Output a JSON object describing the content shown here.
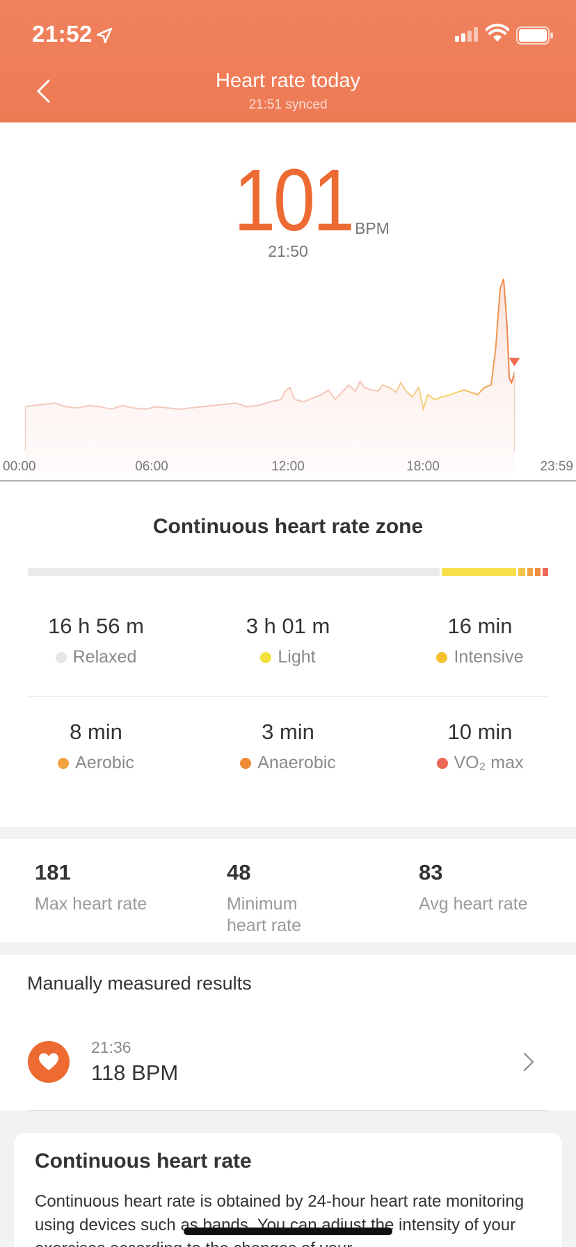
{
  "status_bar": {
    "time": "21:52",
    "icons": [
      "location-arrow-icon",
      "cellular-signal-icon",
      "wifi-icon",
      "battery-icon"
    ]
  },
  "nav": {
    "title": "Heart rate today",
    "subtitle": "21:51 synced",
    "back_icon": "chevron-left-icon"
  },
  "current": {
    "value": "101",
    "unit": "BPM",
    "time": "21:50"
  },
  "chart_data": {
    "type": "area",
    "title": "",
    "xlabel": "",
    "ylabel": "",
    "x_ticks": [
      "00:00",
      "06:00",
      "12:00",
      "18:00",
      "23:59"
    ],
    "x_range_hours": [
      0,
      24
    ],
    "y_range": [
      40,
      190
    ],
    "grid": false,
    "series": [
      {
        "x": [
          0.2,
          0.5,
          1,
          1.5,
          2,
          2.5,
          3,
          3.5,
          4,
          4.5,
          5,
          5.5,
          6,
          6.5,
          7,
          7.5,
          8,
          8.5,
          9,
          9.5,
          10,
          10.5,
          11,
          11.5,
          11.7,
          11.9,
          12.1,
          12.5,
          13,
          13.3,
          13.6,
          13.9,
          14.2,
          14.5,
          14.8,
          15,
          15.2,
          15.5,
          15.8,
          16,
          16.3,
          16.6,
          16.8,
          17,
          17.3,
          17.6,
          17.8,
          18,
          18.3,
          18.6,
          19,
          19.3,
          19.6,
          19.9,
          20.2,
          20.5,
          20.8,
          21,
          21.2,
          21.35,
          21.5,
          21.6,
          21.7,
          21.8,
          21.83
        ],
        "y": [
          72,
          73,
          74,
          75,
          72,
          71,
          73,
          72,
          70,
          73,
          71,
          70,
          72,
          71,
          70,
          71,
          72,
          73,
          74,
          75,
          72,
          73,
          76,
          78,
          85,
          88,
          78,
          76,
          80,
          82,
          86,
          78,
          84,
          90,
          85,
          93,
          88,
          86,
          85,
          90,
          88,
          84,
          92,
          86,
          80,
          88,
          70,
          82,
          78,
          80,
          82,
          84,
          86,
          84,
          82,
          88,
          90,
          120,
          170,
          178,
          140,
          96,
          92,
          98,
          101
        ]
      }
    ]
  },
  "zones": {
    "title": "Continuous heart rate zone",
    "bar_colors": {
      "Relaxed": "#ebebeb",
      "Light": "#f5e04c",
      "Intensive": "#f5c448",
      "Aerobic": "#f1a447",
      "Anaerobic": "#ef8e42",
      "VO2max": "#ec6b57"
    },
    "items": [
      {
        "duration": "16 h 56 m",
        "label": "Relaxed",
        "color": "#e6e6e6",
        "minutes": 1016
      },
      {
        "duration": "3 h 01 m",
        "label": "Light",
        "color": "#f5df3c",
        "minutes": 181
      },
      {
        "duration": "16  min",
        "label": "Intensive",
        "color": "#f5c232",
        "minutes": 16
      },
      {
        "duration": "8  min",
        "label": "Aerobic",
        "color": "#f1a340",
        "minutes": 8
      },
      {
        "duration": "3  min",
        "label": "Anaerobic",
        "color": "#ee8c37",
        "minutes": 3
      },
      {
        "duration": "10  min",
        "label": "VO₂ max",
        "color": "#ec6753",
        "minutes": 10
      }
    ]
  },
  "stats": [
    {
      "value": "181",
      "label": "Max heart rate"
    },
    {
      "value": "48",
      "label": "Minimum heart rate"
    },
    {
      "value": "83",
      "label": "Avg heart rate"
    }
  ],
  "manual": {
    "title": "Manually measured results",
    "entries": [
      {
        "time": "21:36",
        "value": "118  BPM",
        "icon": "heart-icon"
      }
    ]
  },
  "info": {
    "title": "Continuous heart rate",
    "text": "Continuous heart rate is obtained by 24-hour heart rate monitoring using devices such as bands. You can adjust the intensity of your exercises according to the changes of your"
  }
}
